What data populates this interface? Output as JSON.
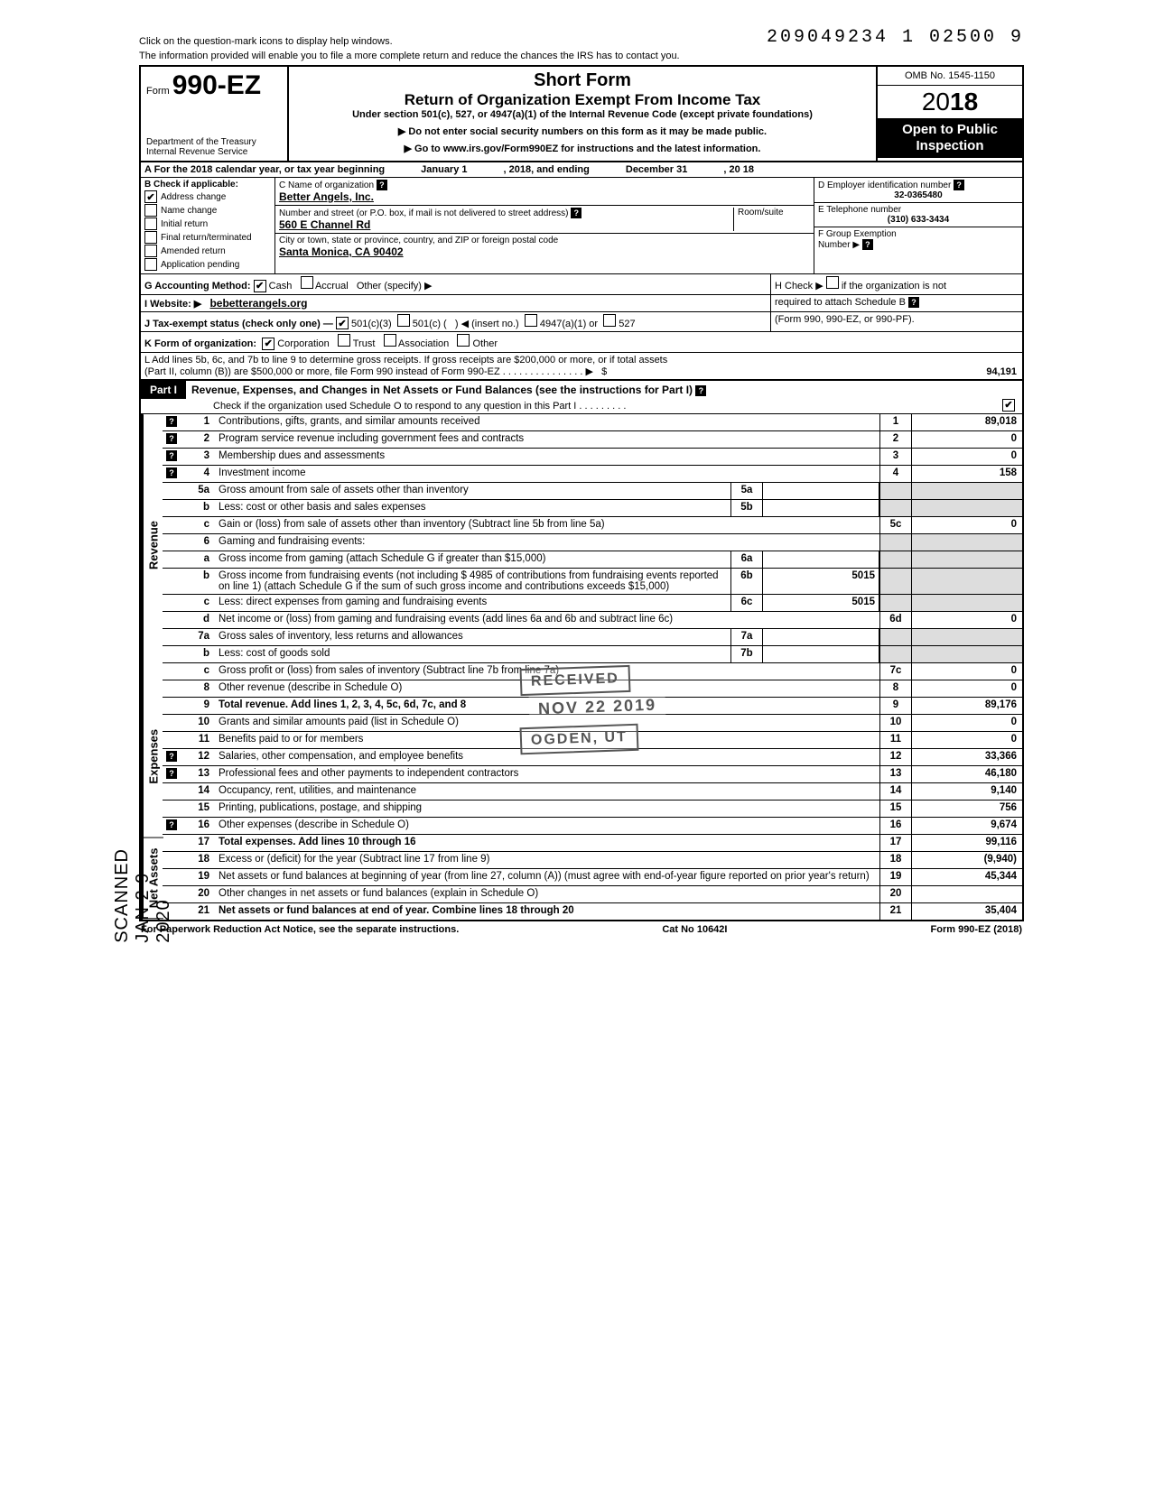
{
  "topHint1": "Click on the question-mark icons to display help windows.",
  "topHint2": "The information provided will enable you to file a more complete return and reduce the chances the IRS has to contact you.",
  "topNumber": "209049234 1 02500  9",
  "header": {
    "formWord": "Form",
    "formNo": "990-EZ",
    "dept1": "Department of the Treasury",
    "dept2": "Internal Revenue Service",
    "title1": "Short Form",
    "title2": "Return of Organization Exempt From Income Tax",
    "title3": "Under section 501(c), 527, or 4947(a)(1) of the Internal Revenue Code (except private foundations)",
    "title4": "▶ Do not enter social security numbers on this form as it may be made public.",
    "title5": "▶ Go to www.irs.gov/Form990EZ for instructions and the latest information.",
    "omb": "OMB No. 1545-1150",
    "year": "2018",
    "open1": "Open to Public",
    "open2": "Inspection"
  },
  "rowA": {
    "text1": "A For the 2018 calendar year, or tax year beginning",
    "begin": "January 1",
    "mid": ", 2018, and ending",
    "end": "December 31",
    "tail": ", 20   18"
  },
  "B": {
    "hdr": "B  Check if applicable:",
    "items": [
      "Address change",
      "Name change",
      "Initial return",
      "Final return/terminated",
      "Amended return",
      "Application pending"
    ],
    "checked": [
      true,
      false,
      false,
      false,
      false,
      false
    ]
  },
  "C": {
    "nameLbl": "C  Name of organization",
    "name": "Better Angels, Inc.",
    "addrLbl": "Number and street (or P.O. box, if mail is not delivered to street address)",
    "roomLbl": "Room/suite",
    "addr": "560 E Channel Rd",
    "cityLbl": "City or town, state or province, country, and ZIP or foreign postal code",
    "city": "Santa Monica, CA 90402"
  },
  "D": {
    "lbl": "D Employer identification number",
    "val": "32-0365480"
  },
  "E": {
    "lbl": "E Telephone number",
    "val": "(310) 633-3434"
  },
  "F": {
    "lbl": "F Group Exemption",
    "lbl2": "Number ▶"
  },
  "G": {
    "lbl": "G  Accounting Method:",
    "cash": "Cash",
    "accrual": "Accrual",
    "other": "Other (specify) ▶",
    "cashChecked": true
  },
  "H": {
    "txt1": "H  Check ▶",
    "txt2": "if the organization is not",
    "txt3": "required to attach Schedule B",
    "txt4": "(Form 990, 990-EZ, or 990-PF)."
  },
  "I": {
    "lbl": "I   Website: ▶",
    "val": "bebetterangels.org"
  },
  "J": {
    "lbl": "J  Tax-exempt status (check only one) —",
    "o1": "501(c)(3)",
    "o2": "501(c) (",
    "o2b": ") ◀ (insert no.)",
    "o3": "4947(a)(1) or",
    "o4": "527",
    "checked": true
  },
  "K": {
    "lbl": "K  Form of organization:",
    "o1": "Corporation",
    "o2": "Trust",
    "o3": "Association",
    "o4": "Other",
    "checked": true
  },
  "L": {
    "l1": "L  Add lines 5b, 6c, and 7b to line 9 to determine gross receipts. If gross receipts are $200,000 or more, or if total assets",
    "l2": "(Part II, column (B)) are $500,000 or more, file Form 990 instead of Form 990-EZ",
    "amt": "94,191"
  },
  "part1": {
    "num": "Part I",
    "title": "Revenue, Expenses, and Changes in Net Assets or Fund Balances (see the instructions for Part I)",
    "sub": "Check if the organization used Schedule O to respond to any question in this Part I"
  },
  "sideLabels": {
    "rev": "Revenue",
    "exp": "Expenses",
    "net": "Net Assets"
  },
  "lines": {
    "1": {
      "n": "1",
      "t": "Contributions, gifts, grants, and similar amounts received",
      "rn": "1",
      "rv": "89,018",
      "help": true
    },
    "2": {
      "n": "2",
      "t": "Program service revenue including government fees and contracts",
      "rn": "2",
      "rv": "0",
      "help": true
    },
    "3": {
      "n": "3",
      "t": "Membership dues and assessments",
      "rn": "3",
      "rv": "0",
      "help": true
    },
    "4": {
      "n": "4",
      "t": "Investment income",
      "rn": "4",
      "rv": "158",
      "help": true
    },
    "5a": {
      "n": "5a",
      "t": "Gross amount from sale of assets other than inventory",
      "mn": "5a"
    },
    "5b": {
      "n": "b",
      "t": "Less: cost or other basis and sales expenses",
      "mn": "5b"
    },
    "5c": {
      "n": "c",
      "t": "Gain or (loss) from sale of assets other than inventory (Subtract line 5b from line 5a)",
      "rn": "5c",
      "rv": "0"
    },
    "6": {
      "n": "6",
      "t": "Gaming and fundraising events:"
    },
    "6a": {
      "n": "a",
      "t": "Gross income from gaming (attach Schedule G if greater than $15,000)",
      "mn": "6a"
    },
    "6b": {
      "n": "b",
      "t": "Gross income from fundraising events (not including  $",
      "t2": "4985  of contributions from fundraising events reported on line 1) (attach Schedule G if the sum of such gross income and contributions exceeds $15,000)",
      "mn": "6b",
      "mv": "5015"
    },
    "6c": {
      "n": "c",
      "t": "Less: direct expenses from gaming and fundraising events",
      "mn": "6c",
      "mv": "5015"
    },
    "6d": {
      "n": "d",
      "t": "Net income or (loss) from gaming and fundraising events (add lines 6a and 6b and subtract line 6c)",
      "rn": "6d",
      "rv": "0"
    },
    "7a": {
      "n": "7a",
      "t": "Gross sales of inventory, less returns and allowances",
      "mn": "7a"
    },
    "7b": {
      "n": "b",
      "t": "Less: cost of goods sold",
      "mn": "7b"
    },
    "7c": {
      "n": "c",
      "t": "Gross profit or (loss) from sales of inventory (Subtract line 7b from line 7a)",
      "rn": "7c",
      "rv": "0"
    },
    "8": {
      "n": "8",
      "t": "Other revenue (describe in Schedule O)",
      "rn": "8",
      "rv": "0"
    },
    "9": {
      "n": "9",
      "t": "Total revenue. Add lines 1, 2, 3, 4, 5c, 6d, 7c, and 8",
      "rn": "9",
      "rv": "89,176",
      "bold": true
    },
    "10": {
      "n": "10",
      "t": "Grants and similar amounts paid (list in Schedule O)",
      "rn": "10",
      "rv": "0"
    },
    "11": {
      "n": "11",
      "t": "Benefits paid to or for members",
      "rn": "11",
      "rv": "0"
    },
    "12": {
      "n": "12",
      "t": "Salaries, other compensation, and employee benefits",
      "rn": "12",
      "rv": "33,366",
      "help": true
    },
    "13": {
      "n": "13",
      "t": "Professional fees and other payments to independent contractors",
      "rn": "13",
      "rv": "46,180",
      "help": true
    },
    "14": {
      "n": "14",
      "t": "Occupancy, rent, utilities, and maintenance",
      "rn": "14",
      "rv": "9,140"
    },
    "15": {
      "n": "15",
      "t": "Printing, publications, postage, and shipping",
      "rn": "15",
      "rv": "756"
    },
    "16": {
      "n": "16",
      "t": "Other expenses (describe in Schedule O)",
      "rn": "16",
      "rv": "9,674",
      "help": true
    },
    "17": {
      "n": "17",
      "t": "Total expenses. Add lines 10 through 16",
      "rn": "17",
      "rv": "99,116",
      "bold": true
    },
    "18": {
      "n": "18",
      "t": "Excess or (deficit) for the year (Subtract line 17 from line 9)",
      "rn": "18",
      "rv": "(9,940)"
    },
    "19": {
      "n": "19",
      "t": "Net assets or fund balances at beginning of year (from line 27, column (A)) (must agree with end-of-year figure reported on prior year's return)",
      "rn": "19",
      "rv": "45,344"
    },
    "20": {
      "n": "20",
      "t": "Other changes in net assets or fund balances (explain in Schedule O)",
      "rn": "20",
      "rv": ""
    },
    "21": {
      "n": "21",
      "t": "Net assets or fund balances at end of year. Combine lines 18 through 20",
      "rn": "21",
      "rv": "35,404",
      "bold": true
    }
  },
  "stamps": {
    "received": "RECEIVED",
    "date": "NOV 22 2019",
    "ogden": "OGDEN, UT",
    "scanned": "SCANNED JAN 2 9 2020"
  },
  "footer": {
    "l": "For Paperwork Reduction Act Notice, see the separate instructions.",
    "m": "Cat  No  10642I",
    "r": "Form 990-EZ (2018)"
  }
}
